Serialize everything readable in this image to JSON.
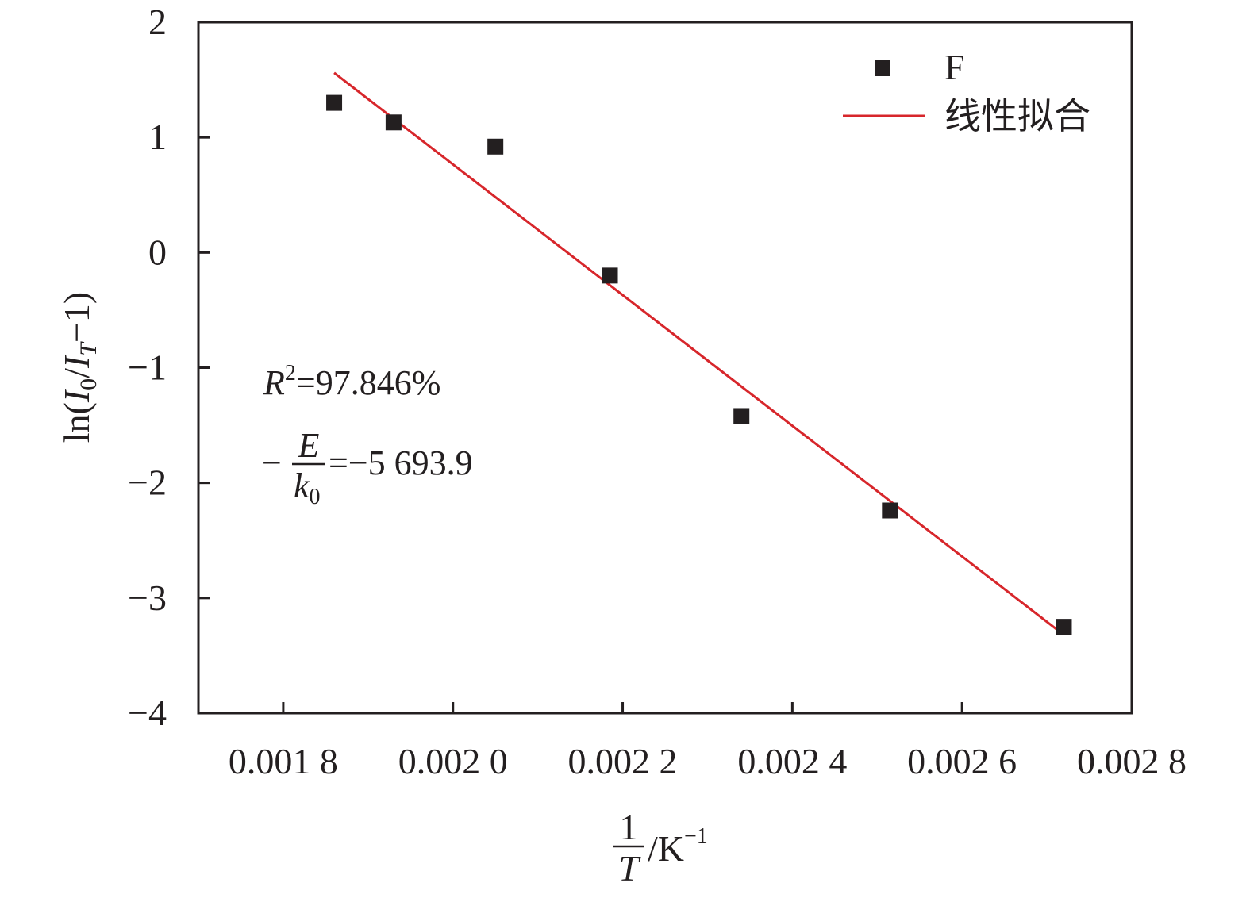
{
  "chart_data": {
    "type": "scatter",
    "xlabel": {
      "num": "1",
      "den": "T",
      "unit": "/K",
      "sup": "−1"
    },
    "ylabel": {
      "pre": "ln(",
      "i1": "I",
      "s1": "0",
      "slash": "/",
      "i2": "I",
      "s2": "T",
      "post": "−1)"
    },
    "xlim": [
      0.0017,
      0.0028
    ],
    "ylim": [
      -4,
      2
    ],
    "xticks": [
      0.0018,
      0.002,
      0.0022,
      0.0024,
      0.0026,
      0.0028
    ],
    "xtick_labels": [
      "0.001 8",
      "0.002 0",
      "0.002 2",
      "0.002 4",
      "0.002 6",
      "0.002 8"
    ],
    "yticks": [
      -4,
      -3,
      -2,
      -1,
      0,
      1,
      2
    ],
    "ytick_labels": [
      "−4",
      "−3",
      "−2",
      "−1",
      "0",
      "1",
      "2"
    ],
    "grid": false,
    "legend_position": "top-right",
    "series": [
      {
        "name": "F",
        "type": "scatter",
        "color": "#231f20",
        "x": [
          0.00186,
          0.00193,
          0.00205,
          0.002185,
          0.00234,
          0.002515,
          0.00272
        ],
        "y": [
          1.3,
          1.13,
          0.92,
          -0.2,
          -1.42,
          -2.24,
          -3.25
        ]
      },
      {
        "name": "线性拟合",
        "type": "line",
        "color": "#d7262b",
        "x": [
          0.00186,
          0.00272
        ],
        "y": [
          1.56,
          -3.32
        ]
      }
    ],
    "annotations": {
      "r2": {
        "var": "R",
        "sup": "2",
        "value": "=97.846%"
      },
      "slope": {
        "minus": "−",
        "num": "E",
        "den_var": "k",
        "den_sub": "0",
        "value": "=−5 693.9"
      }
    }
  }
}
